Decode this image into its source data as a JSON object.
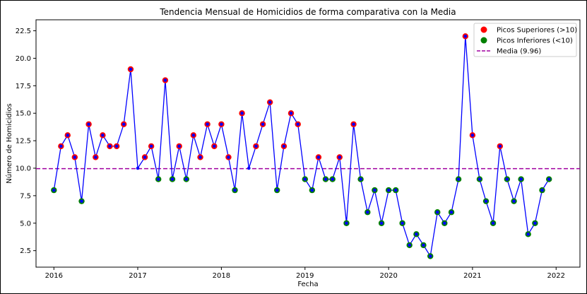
{
  "chart_data": {
    "type": "line",
    "title": "Tendencia Mensual de Homicidios de forma comparativa con la Media",
    "xlabel": "Fecha",
    "ylabel": "Número de Homicidios",
    "xlim": [
      "2015-10-15",
      "2022-04-15"
    ],
    "ylim": [
      1.0,
      23.5
    ],
    "x_ticks": [
      {
        "date": "2016-01-01",
        "label": "2016"
      },
      {
        "date": "2017-01-01",
        "label": "2017"
      },
      {
        "date": "2018-01-01",
        "label": "2018"
      },
      {
        "date": "2019-01-01",
        "label": "2019"
      },
      {
        "date": "2020-01-01",
        "label": "2020"
      },
      {
        "date": "2021-01-01",
        "label": "2021"
      },
      {
        "date": "2022-01-01",
        "label": "2022"
      }
    ],
    "y_ticks": [
      {
        "value": 2.5,
        "label": "2.5"
      },
      {
        "value": 5.0,
        "label": "5.0"
      },
      {
        "value": 7.5,
        "label": "7.5"
      },
      {
        "value": 10.0,
        "label": "10.0"
      },
      {
        "value": 12.5,
        "label": "12.5"
      },
      {
        "value": 15.0,
        "label": "15.0"
      },
      {
        "value": 17.5,
        "label": "17.5"
      },
      {
        "value": 20.0,
        "label": "20.0"
      },
      {
        "value": 22.5,
        "label": "22.5"
      }
    ],
    "grid": false,
    "legend_position": "top-right",
    "start_month": "2016-01",
    "series": [
      {
        "line_color": "#0000ff",
        "values": [
          8,
          12,
          13,
          11,
          7,
          14,
          11,
          13,
          12,
          12,
          14,
          19,
          10,
          11,
          12,
          9,
          18,
          9,
          12,
          9,
          13,
          11,
          14,
          12,
          14,
          11,
          8,
          15,
          10,
          12,
          14,
          16,
          8,
          12,
          15,
          14,
          9,
          8,
          11,
          9,
          9,
          11,
          5,
          14,
          9,
          6,
          8,
          5,
          8,
          8,
          5,
          3,
          4,
          3,
          2,
          6,
          5,
          6,
          9,
          22,
          13,
          9,
          7,
          5,
          12,
          9,
          7,
          9,
          4,
          5,
          8,
          9
        ]
      }
    ],
    "upper_threshold": 10,
    "lower_threshold": 10,
    "mean": 9.96,
    "marker_fill": "#0000ff",
    "upper_color": "#ff0000",
    "lower_color": "#008000",
    "mean_color": "#a000a0",
    "legend": [
      {
        "label": "Picos Superiores (>10)",
        "kind": "dot",
        "color": "#ff0000"
      },
      {
        "label": "Picos Inferiores (<10)",
        "kind": "dot",
        "color": "#008000"
      },
      {
        "label": "Media (9.96)",
        "kind": "dash",
        "color": "#a000a0"
      }
    ]
  }
}
